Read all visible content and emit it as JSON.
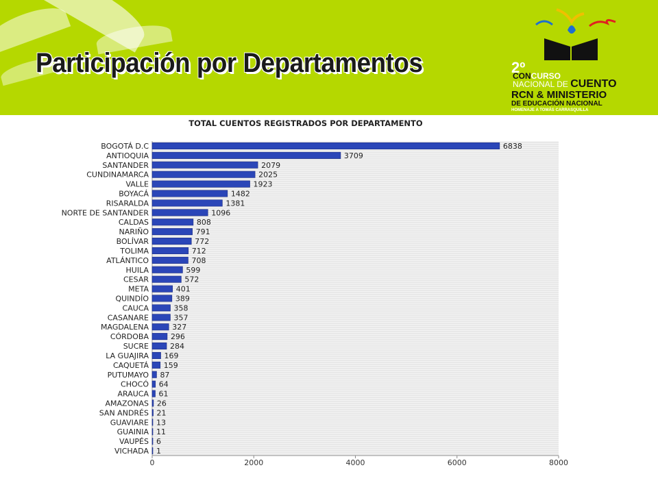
{
  "slide": {
    "title": "Participación por Departamentos"
  },
  "logo": {
    "number": "2º",
    "line1a": "CON",
    "line1b": "CURSO",
    "line2a": "NACIONAL DE ",
    "line2b": "CUENTO",
    "line3": "RCN & MINISTERIO",
    "line4": "DE EDUCACIÓN NACIONAL",
    "line5": "HOMENAJE A TOMÁS CARRASQUILLA"
  },
  "colors": {
    "banner": "#b5d800",
    "bar": "#2b46b8",
    "bar_edge": "#1a2a80"
  },
  "chart_data": {
    "type": "bar",
    "orientation": "horizontal",
    "title": "TOTAL CUENTOS REGISTRADOS POR DEPARTAMENTO",
    "xlabel": "",
    "ylabel": "",
    "xlim": [
      0,
      8000
    ],
    "xticks": [
      0,
      2000,
      4000,
      6000,
      8000
    ],
    "grid": true,
    "categories": [
      "BOGOTÁ D.C",
      "ANTIOQUIA",
      "SANTANDER",
      "CUNDINAMARCA",
      "VALLE",
      "BOYACÁ",
      "RISARALDA",
      "NORTE DE SANTANDER",
      "CALDAS",
      "NARIÑO",
      "BOLÍVAR",
      "TOLIMA",
      "ATLÁNTICO",
      "HUILA",
      "CESAR",
      "META",
      "QUINDÍO",
      "CAUCA",
      "CASANARE",
      "MAGDALENA",
      "CÓRDOBA",
      "SUCRE",
      "LA GUAJIRA",
      "CAQUETÁ",
      "PUTUMAYO",
      "CHOCÓ",
      "ARAUCA",
      "AMAZONAS",
      "SAN ANDRÉS",
      "GUAVIARE",
      "GUAINIA",
      "VAUPÉS",
      "VICHADA"
    ],
    "values": [
      6838,
      3709,
      2079,
      2025,
      1923,
      1482,
      1381,
      1096,
      808,
      791,
      772,
      712,
      708,
      599,
      572,
      401,
      389,
      358,
      357,
      327,
      296,
      284,
      169,
      159,
      87,
      64,
      61,
      26,
      21,
      13,
      11,
      6,
      1
    ]
  }
}
